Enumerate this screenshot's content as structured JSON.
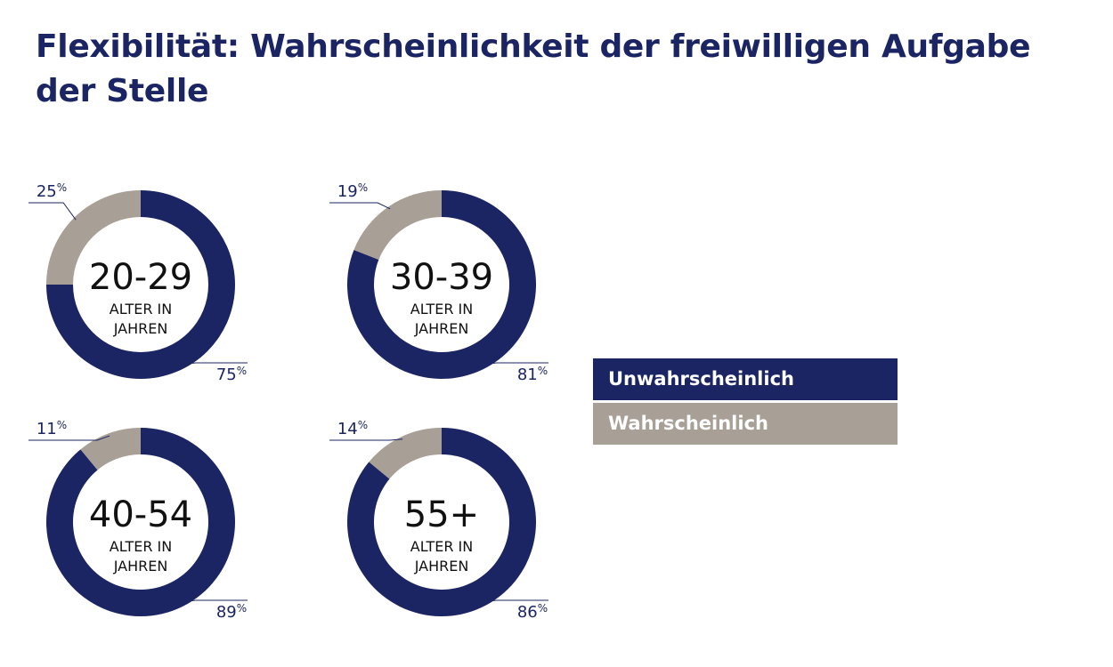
{
  "title": "Flexibilität: Wahrscheinlichkeit der freiwilligen Aufgabe der Stelle",
  "colors": {
    "unlikely": "#1b2563",
    "likely": "#a89f96",
    "title": "#1b2563"
  },
  "legend": {
    "items": [
      {
        "label": "Unwahrscheinlich",
        "color": "#1b2563"
      },
      {
        "label": "Wahrscheinlich",
        "color": "#a89f96"
      }
    ]
  },
  "chart_data": [
    {
      "type": "pie",
      "variant": "donut",
      "group_label": "20-29",
      "sublabel": "ALTER IN JAHREN",
      "slices": [
        {
          "name": "Unwahrscheinlich",
          "value": 75,
          "label": "75%"
        },
        {
          "name": "Wahrscheinlich",
          "value": 25,
          "label": "25%"
        }
      ]
    },
    {
      "type": "pie",
      "variant": "donut",
      "group_label": "30-39",
      "sublabel": "ALTER IN JAHREN",
      "slices": [
        {
          "name": "Unwahrscheinlich",
          "value": 81,
          "label": "81%"
        },
        {
          "name": "Wahrscheinlich",
          "value": 19,
          "label": "19%"
        }
      ]
    },
    {
      "type": "pie",
      "variant": "donut",
      "group_label": "40-54",
      "sublabel": "ALTER IN JAHREN",
      "slices": [
        {
          "name": "Unwahrscheinlich",
          "value": 89,
          "label": "89%"
        },
        {
          "name": "Wahrscheinlich",
          "value": 11,
          "label": "11%"
        }
      ]
    },
    {
      "type": "pie",
      "variant": "donut",
      "group_label": "55+",
      "sublabel": "ALTER IN JAHREN",
      "slices": [
        {
          "name": "Unwahrscheinlich",
          "value": 86,
          "label": "86%"
        },
        {
          "name": "Wahrscheinlich",
          "value": 14,
          "label": "14%"
        }
      ]
    }
  ]
}
